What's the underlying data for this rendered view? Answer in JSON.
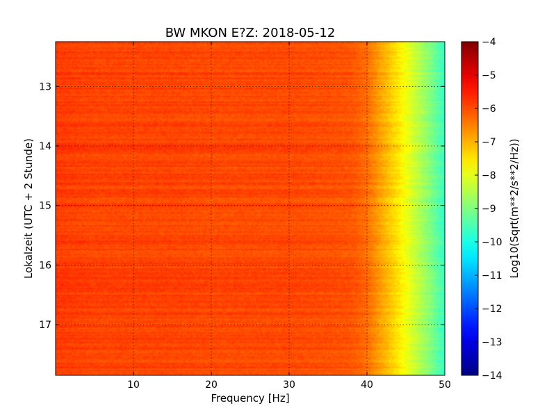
{
  "chart_data": {
    "type": "heatmap",
    "title": "BW MKON E?Z: 2018-05-12",
    "xlabel": "Frequency [Hz]",
    "ylabel": "Lokalzeit (UTC + 2 Stunde)",
    "xlim": [
      0,
      50
    ],
    "ylim": [
      12.25,
      17.85
    ],
    "y_axis_inverted": true,
    "grid": true,
    "xticks": [
      10,
      20,
      30,
      40,
      50
    ],
    "xtick_labels": [
      "10",
      "20",
      "30",
      "40",
      "50"
    ],
    "yticks": [
      13,
      14,
      15,
      16,
      17
    ],
    "ytick_labels": [
      "13",
      "14",
      "15",
      "16",
      "17"
    ],
    "colorbar": {
      "label": "Log10(Sqrt(m**2/s**2/Hz))",
      "colormap": "jet",
      "range": [
        -14,
        -4
      ],
      "ticks": [
        -4,
        -5,
        -6,
        -7,
        -8,
        -9,
        -10,
        -11,
        -12,
        -13,
        -14
      ],
      "tick_labels": [
        "−4",
        "−5",
        "−6",
        "−7",
        "−8",
        "−9",
        "−10",
        "−11",
        "−12",
        "−13",
        "−14"
      ]
    },
    "spectral_profile": {
      "frequency_hz": [
        0,
        5,
        10,
        15,
        20,
        25,
        30,
        35,
        38,
        40,
        41,
        42,
        43,
        44,
        45,
        46,
        47,
        48,
        49,
        50
      ],
      "log10_amplitude": [
        -5.8,
        -5.9,
        -5.9,
        -5.9,
        -5.95,
        -5.95,
        -5.95,
        -6.0,
        -6.05,
        -6.3,
        -6.6,
        -6.9,
        -7.2,
        -7.5,
        -7.85,
        -8.2,
        -8.55,
        -8.9,
        -9.3,
        -9.7
      ]
    },
    "strong_bands": [
      {
        "time": 12.5,
        "log10_amplitude": -4.6
      },
      {
        "time": 12.62,
        "log10_amplitude": -5.0
      },
      {
        "time": 12.8,
        "log10_amplitude": -5.1
      },
      {
        "time": 13.03,
        "log10_amplitude": -4.8
      },
      {
        "time": 13.35,
        "log10_amplitude": -5.2
      },
      {
        "time": 13.45,
        "log10_amplitude": -5.1
      },
      {
        "time": 14.1,
        "log10_amplitude": -5.1
      },
      {
        "time": 14.26,
        "log10_amplitude": -5.0
      },
      {
        "time": 14.75,
        "log10_amplitude": -5.0
      },
      {
        "time": 15.17,
        "log10_amplitude": -4.7
      },
      {
        "time": 15.55,
        "log10_amplitude": -5.2
      },
      {
        "time": 15.85,
        "log10_amplitude": -5.0
      },
      {
        "time": 16.45,
        "log10_amplitude": -5.3
      },
      {
        "time": 16.65,
        "log10_amplitude": -5.3
      },
      {
        "time": 17.0,
        "log10_amplitude": -5.0
      },
      {
        "time": 17.27,
        "log10_amplitude": -5.3
      },
      {
        "time": 17.63,
        "log10_amplitude": -5.0
      }
    ]
  }
}
